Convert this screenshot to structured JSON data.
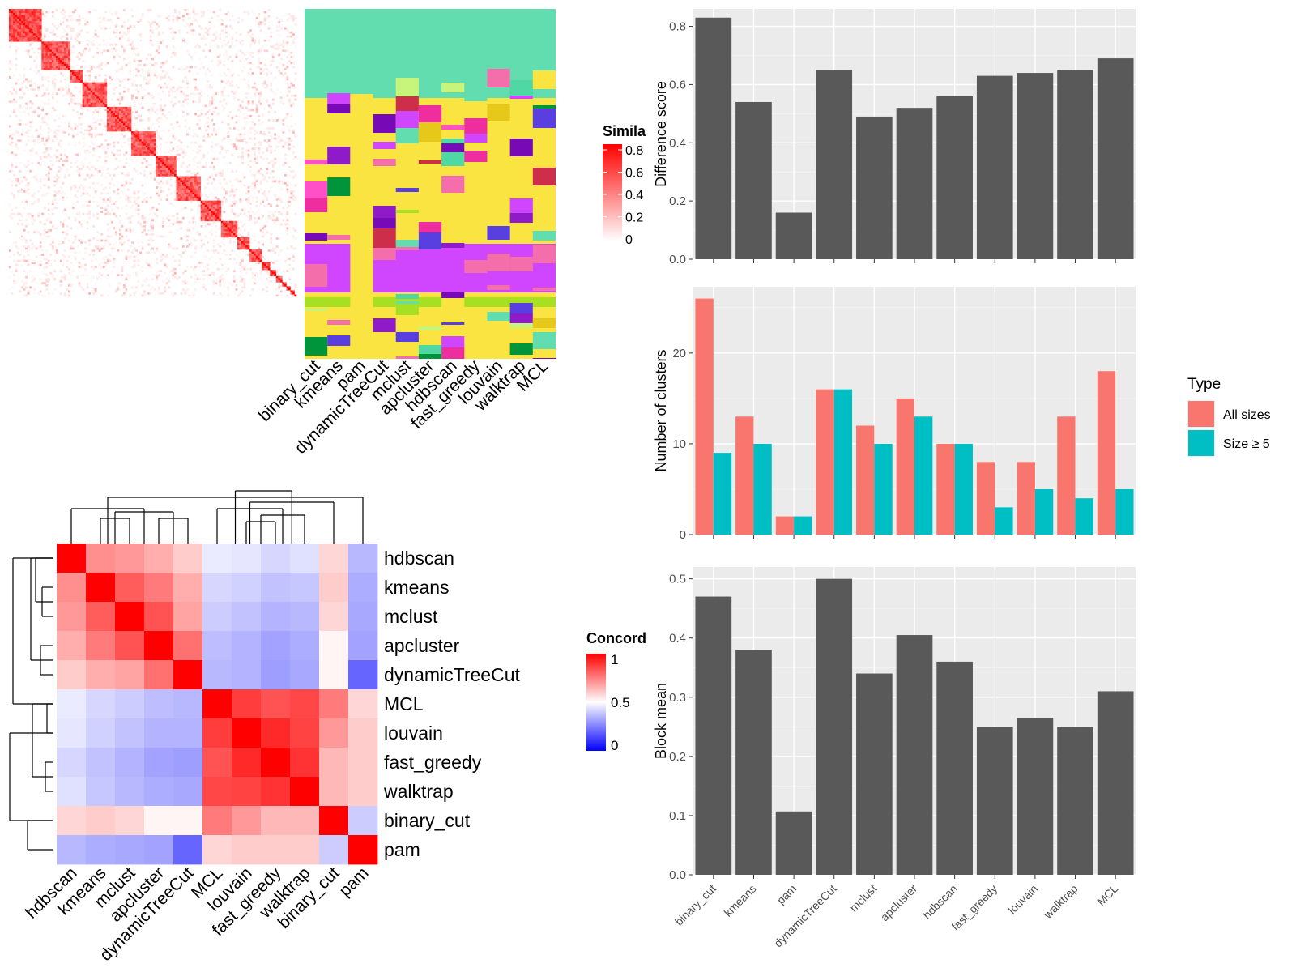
{
  "methods_bar": [
    "binary_cut",
    "kmeans",
    "pam",
    "dynamicTreeCut",
    "mclust",
    "apcluster",
    "hdbscan",
    "fast_greedy",
    "louvain",
    "walktrap",
    "MCL"
  ],
  "chart_data": [
    {
      "type": "bar",
      "categories": [
        "binary_cut",
        "kmeans",
        "pam",
        "dynamicTreeCut",
        "mclust",
        "apcluster",
        "hdbscan",
        "fast_greedy",
        "louvain",
        "walktrap",
        "MCL"
      ],
      "values": [
        0.83,
        0.54,
        0.16,
        0.65,
        0.49,
        0.52,
        0.56,
        0.63,
        0.64,
        0.65,
        0.69
      ],
      "ylabel": "Difference score",
      "ylim": [
        0,
        0.86
      ],
      "yticks": [
        "0.0",
        "0.2",
        "0.4",
        "0.6",
        "0.8"
      ],
      "color": "#595959",
      "grid": true
    },
    {
      "type": "bar",
      "categories": [
        "binary_cut",
        "kmeans",
        "pam",
        "dynamicTreeCut",
        "mclust",
        "apcluster",
        "hdbscan",
        "fast_greedy",
        "louvain",
        "walktrap",
        "MCL"
      ],
      "series": [
        {
          "name": "All sizes",
          "values": [
            26,
            13,
            2,
            16,
            12,
            15,
            10,
            8,
            8,
            13,
            18
          ],
          "color": "#F8766D"
        },
        {
          "name": "Size ≥ 5",
          "values": [
            9,
            10,
            2,
            16,
            10,
            13,
            10,
            3,
            5,
            4,
            5
          ],
          "color": "#00BFC4"
        }
      ],
      "ylabel": "Number of clusters",
      "ylim": [
        0,
        27.3
      ],
      "yticks": [
        "0",
        "10",
        "20"
      ],
      "legend_title": "Type",
      "legend": "right",
      "grid": true
    },
    {
      "type": "bar",
      "categories": [
        "binary_cut",
        "kmeans",
        "pam",
        "dynamicTreeCut",
        "mclust",
        "apcluster",
        "hdbscan",
        "fast_greedy",
        "louvain",
        "walktrap",
        "MCL"
      ],
      "values": [
        0.47,
        0.38,
        0.107,
        0.5,
        0.34,
        0.405,
        0.36,
        0.25,
        0.265,
        0.25,
        0.31
      ],
      "ylabel": "Block mean",
      "xlabels": [
        "binary_cut",
        "kmeans",
        "pam",
        "dynamicTreeCut",
        "mclust",
        "apcluster",
        "hdbscan",
        "fast_greedy",
        "louvain",
        "walktrap",
        "MCL"
      ],
      "ylim": [
        0,
        0.52
      ],
      "yticks": [
        "0.0",
        "0.1",
        "0.2",
        "0.3",
        "0.4",
        "0.5"
      ],
      "color": "#595959",
      "grid": true
    },
    {
      "type": "heatmap",
      "description_levels": "similarity matrix",
      "legend_title": "Simila",
      "legend_ticks": [
        "0.8",
        "0.6",
        "0.4",
        "0.2",
        "0"
      ],
      "block_sizes": [
        16,
        14,
        6,
        12,
        12,
        12,
        10,
        12,
        10,
        8,
        6,
        6,
        4,
        3,
        3,
        2,
        2,
        2,
        1
      ]
    },
    {
      "type": "heatmap",
      "columns": [
        "binary_cut",
        "kmeans",
        "pam",
        "dynamicTreeCut",
        "mclust",
        "apcluster",
        "hdbscan",
        "fast_greedy",
        "louvain",
        "walktrap",
        "MCL"
      ],
      "palette": [
        "#62DDB0",
        "#F9E442",
        "#D046FF",
        "#00953B",
        "#FF50C8",
        "#A7E023",
        "#7809B7",
        "#E6C81A",
        "#CD2F4B",
        "#F36EAB",
        "#EE2E9E",
        "#5A3FE0",
        "#8E1AC8",
        "#4FD8A4",
        "#C7F57C"
      ]
    },
    {
      "type": "heatmap",
      "legend_title": "Concord",
      "legend_ticks": [
        "1",
        "0.5",
        "0"
      ],
      "rows": [
        "hdbscan",
        "kmeans",
        "mclust",
        "apcluster",
        "dynamicTreeCut",
        "MCL",
        "louvain",
        "fast_greedy",
        "walktrap",
        "binary_cut",
        "pam"
      ],
      "columns": [
        "hdbscan",
        "kmeans",
        "mclust",
        "apcluster",
        "dynamicTreeCut",
        "MCL",
        "louvain",
        "fast_greedy",
        "walktrap",
        "binary_cut",
        "pam"
      ],
      "values": [
        [
          1.0,
          0.72,
          0.7,
          0.66,
          0.6,
          0.46,
          0.45,
          0.42,
          0.44,
          0.58,
          0.36
        ],
        [
          0.72,
          1.0,
          0.82,
          0.76,
          0.66,
          0.42,
          0.41,
          0.38,
          0.39,
          0.6,
          0.34
        ],
        [
          0.7,
          0.82,
          1.0,
          0.84,
          0.68,
          0.4,
          0.38,
          0.35,
          0.36,
          0.58,
          0.33
        ],
        [
          0.66,
          0.76,
          0.84,
          1.0,
          0.78,
          0.37,
          0.35,
          0.32,
          0.34,
          0.52,
          0.32
        ],
        [
          0.6,
          0.66,
          0.68,
          0.78,
          1.0,
          0.36,
          0.35,
          0.31,
          0.33,
          0.52,
          0.2
        ],
        [
          0.46,
          0.42,
          0.4,
          0.37,
          0.36,
          1.0,
          0.88,
          0.84,
          0.86,
          0.76,
          0.58
        ],
        [
          0.45,
          0.41,
          0.38,
          0.35,
          0.35,
          0.88,
          1.0,
          0.92,
          0.87,
          0.7,
          0.6
        ],
        [
          0.42,
          0.38,
          0.35,
          0.32,
          0.31,
          0.84,
          0.92,
          1.0,
          0.9,
          0.64,
          0.6
        ],
        [
          0.44,
          0.39,
          0.36,
          0.34,
          0.33,
          0.86,
          0.87,
          0.9,
          1.0,
          0.64,
          0.6
        ],
        [
          0.58,
          0.6,
          0.58,
          0.52,
          0.52,
          0.76,
          0.7,
          0.64,
          0.64,
          1.0,
          0.4
        ],
        [
          0.36,
          0.34,
          0.33,
          0.32,
          0.2,
          0.58,
          0.6,
          0.6,
          0.6,
          0.4,
          1.0
        ]
      ]
    }
  ]
}
